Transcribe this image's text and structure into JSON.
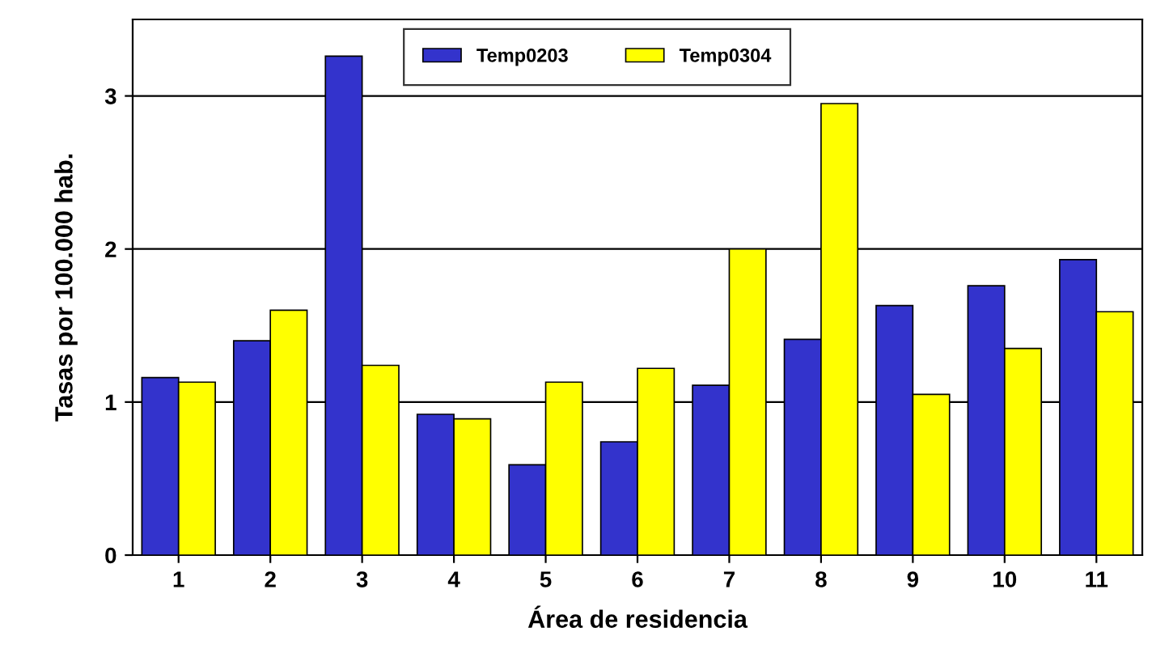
{
  "chart_data": {
    "type": "bar",
    "xlabel": "Área de residencia",
    "ylabel": "Tasas por 100.000 hab.",
    "categories": [
      "1",
      "2",
      "3",
      "4",
      "5",
      "6",
      "7",
      "8",
      "9",
      "10",
      "11"
    ],
    "series": [
      {
        "name": "Temp0203",
        "color": "#3333cc",
        "values": [
          1.16,
          1.4,
          3.26,
          0.92,
          0.59,
          0.74,
          1.11,
          1.41,
          1.63,
          1.76,
          1.93
        ]
      },
      {
        "name": "Temp0304",
        "color": "#ffff00",
        "values": [
          1.13,
          1.6,
          1.24,
          0.89,
          1.13,
          1.22,
          2.0,
          2.95,
          1.05,
          1.35,
          1.59
        ]
      }
    ],
    "ylim": [
      0,
      3.5
    ],
    "yticks": [
      0,
      1,
      2,
      3
    ],
    "grid": "y",
    "legend": "top"
  }
}
